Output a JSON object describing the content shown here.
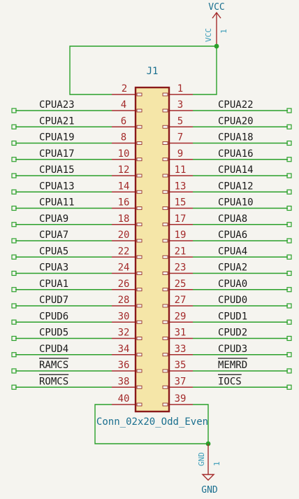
{
  "component": {
    "reference": "J1",
    "value": "Conn_02x20_Odd_Even"
  },
  "power": {
    "vcc": {
      "label": "VCC",
      "pin_label": "VCC",
      "pin_number": "1"
    },
    "gnd": {
      "label": "GND",
      "pin_label": "GND",
      "pin_number": "1"
    }
  },
  "top_pins": {
    "left": "2",
    "right": "1"
  },
  "bottom_pins": {
    "left": "40",
    "right": "39"
  },
  "rows": [
    {
      "left_net": "CPUA23",
      "left_pin": "4",
      "right_pin": "3",
      "right_net": "CPUA22"
    },
    {
      "left_net": "CPUA21",
      "left_pin": "6",
      "right_pin": "5",
      "right_net": "CPUA20"
    },
    {
      "left_net": "CPUA19",
      "left_pin": "8",
      "right_pin": "7",
      "right_net": "CPUA18"
    },
    {
      "left_net": "CPUA17",
      "left_pin": "10",
      "right_pin": "9",
      "right_net": "CPUA16"
    },
    {
      "left_net": "CPUA15",
      "left_pin": "12",
      "right_pin": "11",
      "right_net": "CPUA14"
    },
    {
      "left_net": "CPUA13",
      "left_pin": "14",
      "right_pin": "13",
      "right_net": "CPUA12"
    },
    {
      "left_net": "CPUA11",
      "left_pin": "16",
      "right_pin": "15",
      "right_net": "CPUA10"
    },
    {
      "left_net": "CPUA9",
      "left_pin": "18",
      "right_pin": "17",
      "right_net": "CPUA8"
    },
    {
      "left_net": "CPUA7",
      "left_pin": "20",
      "right_pin": "19",
      "right_net": "CPUA6"
    },
    {
      "left_net": "CPUA5",
      "left_pin": "22",
      "right_pin": "21",
      "right_net": "CPUA4"
    },
    {
      "left_net": "CPUA3",
      "left_pin": "24",
      "right_pin": "23",
      "right_net": "CPUA2"
    },
    {
      "left_net": "CPUA1",
      "left_pin": "26",
      "right_pin": "25",
      "right_net": "CPUA0"
    },
    {
      "left_net": "CPUD7",
      "left_pin": "28",
      "right_pin": "27",
      "right_net": "CPUD0"
    },
    {
      "left_net": "CPUD6",
      "left_pin": "30",
      "right_pin": "29",
      "right_net": "CPUD1"
    },
    {
      "left_net": "CPUD5",
      "left_pin": "32",
      "right_pin": "31",
      "right_net": "CPUD2"
    },
    {
      "left_net": "CPUD4",
      "left_pin": "34",
      "right_pin": "33",
      "right_net": "CPUD3"
    },
    {
      "left_net": "RAMCS",
      "left_pin": "36",
      "right_pin": "35",
      "right_net": "MEMRD",
      "left_overbar": true,
      "right_overbar": true
    },
    {
      "left_net": "ROMCS",
      "left_pin": "38",
      "right_pin": "37",
      "right_net": "IOCS",
      "left_overbar": true,
      "right_overbar": true
    }
  ]
}
